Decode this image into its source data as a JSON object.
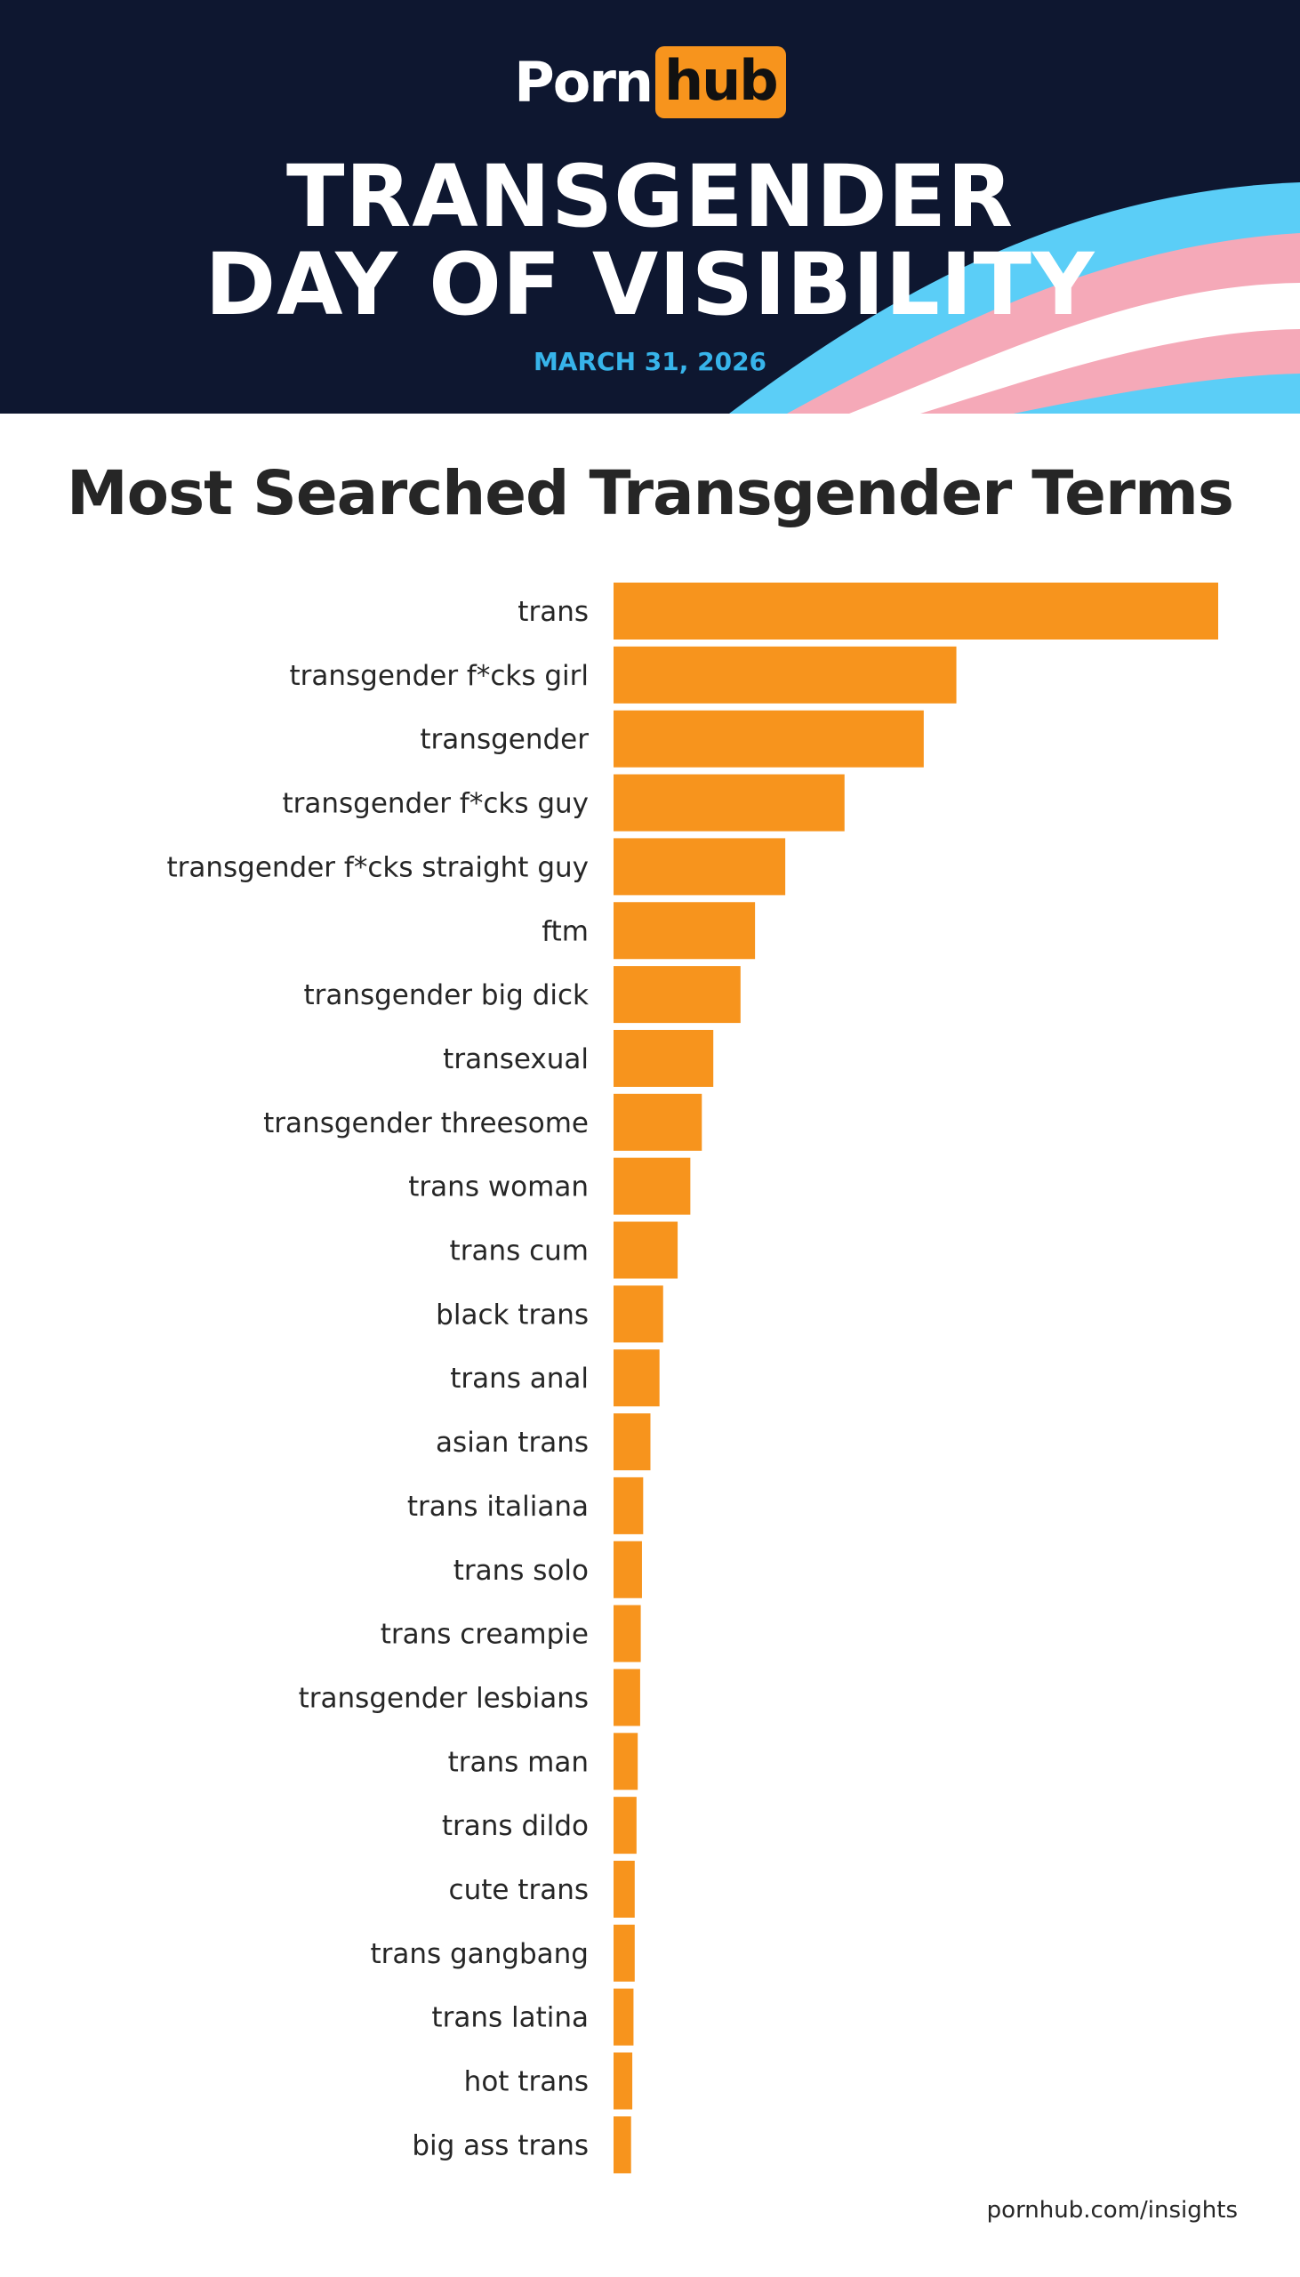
{
  "header": {
    "logo_left": "Porn",
    "logo_right": "hub",
    "headline_line1": "TRANSGENDER",
    "headline_line2": "DAY OF VISIBILITY",
    "date": "MARCH 31, 2026",
    "colors": {
      "background": "#0e1730",
      "flag_blue": "#5bcef7",
      "flag_pink": "#f5a9b8",
      "flag_white": "#ffffff",
      "logo_orange": "#f7941d",
      "date_blue": "#37b4ea"
    }
  },
  "chart_data": {
    "type": "bar",
    "orientation": "horizontal",
    "title": "Most Searched Transgender Terms",
    "xlabel": "",
    "ylabel": "",
    "grid": false,
    "bar_color": "#f7941d",
    "categories": [
      "trans",
      "transgender f*cks girl",
      "transgender",
      "transgender f*cks guy",
      "transgender f*cks straight guy",
      "ftm",
      "transgender big dick",
      "transexual",
      "transgender threesome",
      "trans woman",
      "trans cum",
      "black trans",
      "trans anal",
      "asian trans",
      "trans italiana",
      "trans solo",
      "trans creampie",
      "transgender lesbians",
      "trans man",
      "trans dildo",
      "cute trans",
      "trans gangbang",
      "trans latina",
      "hot trans",
      "big ass trans"
    ],
    "values": [
      100,
      56.7,
      51.3,
      38.2,
      28.4,
      23.4,
      21,
      16.5,
      14.6,
      12.7,
      10.6,
      8.2,
      7.6,
      6.1,
      4.9,
      4.7,
      4.5,
      4.4,
      4.0,
      3.8,
      3.5,
      3.5,
      3.3,
      3.1,
      2.9
    ],
    "xlim": [
      0,
      100
    ]
  },
  "footer": {
    "source": "pornhub.com/insights"
  }
}
